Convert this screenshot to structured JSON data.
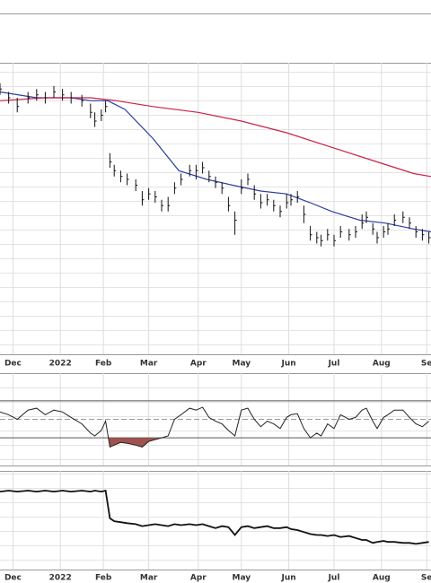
{
  "chart_data": [
    {
      "type": "hlc",
      "xlim": [
        0,
        200
      ],
      "xticks": [
        {
          "value": 6,
          "label": "Dec"
        },
        {
          "value": 28,
          "label": "2022"
        },
        {
          "value": 48,
          "label": "Feb"
        },
        {
          "value": 69,
          "label": "Mar"
        },
        {
          "value": 92,
          "label": "Apr"
        },
        {
          "value": 112,
          "label": "May"
        },
        {
          "value": 134,
          "label": "Jun"
        },
        {
          "value": 155,
          "label": "Jul"
        },
        {
          "value": 177,
          "label": "Aug"
        },
        {
          "value": 198,
          "label": "Se"
        }
      ],
      "ylim": [
        0,
        100
      ],
      "grid": true,
      "color": "#111111",
      "x": [
        0,
        4,
        8,
        13,
        17,
        21,
        25,
        29,
        33,
        38,
        42,
        44,
        47,
        49,
        51,
        53,
        56,
        59,
        63,
        66,
        69,
        72,
        75,
        78,
        81,
        84,
        88,
        91,
        94,
        97,
        100,
        103,
        106,
        109,
        112,
        115,
        118,
        121,
        124,
        127,
        130,
        133,
        135,
        138,
        141,
        144,
        147,
        149,
        152,
        155,
        158,
        162,
        165,
        168,
        170,
        173,
        175,
        178,
        180,
        183,
        187,
        190,
        193,
        196,
        199
      ],
      "high": [
        93,
        90,
        88,
        90,
        91,
        90,
        92,
        91,
        90,
        89,
        86,
        83,
        84,
        87,
        69,
        65,
        63,
        62,
        60,
        56,
        57,
        56,
        53,
        54,
        59,
        62,
        65,
        65,
        66,
        63,
        61,
        59,
        54,
        49,
        60,
        62,
        58,
        55,
        55,
        53,
        51,
        55,
        55,
        56,
        51,
        44,
        42,
        41,
        43,
        41,
        44,
        43,
        44,
        48,
        49,
        45,
        42,
        44,
        45,
        48,
        49,
        47,
        44,
        43,
        42
      ],
      "low": [
        89,
        86,
        83,
        86,
        87,
        86,
        88,
        87,
        86,
        85,
        81,
        78,
        80,
        83,
        64,
        61,
        59,
        58,
        56,
        51,
        53,
        52,
        49,
        49,
        55,
        58,
        61,
        60,
        62,
        59,
        57,
        55,
        49,
        41,
        55,
        58,
        53,
        50,
        51,
        49,
        47,
        50,
        51,
        52,
        45,
        39,
        38,
        37,
        39,
        37,
        40,
        39,
        40,
        43,
        45,
        41,
        38,
        40,
        41,
        44,
        45,
        43,
        40,
        39,
        38
      ],
      "close": [
        91,
        88,
        85,
        88,
        89,
        88,
        90,
        89,
        88,
        87,
        83,
        80,
        82,
        85,
        66,
        63,
        61,
        60,
        58,
        53,
        55,
        54,
        51,
        51,
        57,
        60,
        63,
        63,
        64,
        61,
        59,
        57,
        51,
        46,
        57,
        60,
        55,
        52,
        53,
        51,
        49,
        52,
        53,
        54,
        48,
        41,
        40,
        39,
        41,
        39,
        42,
        41,
        42,
        45,
        47,
        43,
        40,
        42,
        43,
        46,
        47,
        45,
        42,
        41,
        40
      ],
      "series": [
        {
          "color": "#2b3fa0",
          "x": [
            0,
            17,
            33,
            42,
            50,
            58,
            71,
            83,
            96,
            108,
            121,
            133,
            144,
            154,
            167,
            179,
            192,
            200
          ],
          "values": [
            90,
            88,
            88,
            87,
            87,
            84,
            74,
            63,
            60,
            58,
            56,
            55,
            52,
            49,
            46,
            45,
            43,
            42
          ]
        },
        {
          "color": "#c8234a",
          "x": [
            0,
            21,
            42,
            54,
            71,
            92,
            112,
            133,
            154,
            175,
            192,
            200
          ],
          "values": [
            87,
            88,
            88,
            87,
            85,
            83,
            80,
            76,
            71,
            66,
            62,
            61
          ]
        }
      ]
    },
    {
      "type": "oscillator",
      "xlim": [
        0,
        200
      ],
      "ylim": [
        0,
        100
      ],
      "levels": [
        30,
        50,
        70
      ],
      "color": "#222222",
      "fill_color": "#a0524e",
      "x": [
        0,
        4,
        8,
        13,
        17,
        21,
        25,
        29,
        33,
        38,
        42,
        44,
        47,
        49,
        51,
        53,
        56,
        59,
        63,
        66,
        69,
        72,
        75,
        78,
        81,
        84,
        88,
        91,
        94,
        97,
        100,
        103,
        106,
        109,
        112,
        115,
        118,
        121,
        124,
        127,
        130,
        133,
        135,
        138,
        141,
        144,
        147,
        149,
        152,
        155,
        158,
        162,
        165,
        168,
        170,
        173,
        175,
        178,
        180,
        183,
        187,
        190,
        193,
        196,
        199
      ],
      "values": [
        58,
        55,
        50,
        60,
        62,
        55,
        60,
        58,
        52,
        45,
        35,
        32,
        38,
        48,
        20,
        22,
        25,
        24,
        22,
        20,
        26,
        28,
        30,
        32,
        50,
        55,
        62,
        60,
        63,
        52,
        48,
        45,
        38,
        32,
        60,
        62,
        50,
        42,
        48,
        45,
        40,
        52,
        55,
        56,
        40,
        30,
        35,
        32,
        45,
        40,
        55,
        50,
        52,
        60,
        62,
        48,
        40,
        52,
        55,
        60,
        60,
        52,
        45,
        42,
        48
      ]
    },
    {
      "type": "line",
      "xlim": [
        0,
        200
      ],
      "xticks": [
        {
          "value": 6,
          "label": "Dec"
        },
        {
          "value": 28,
          "label": "2022"
        },
        {
          "value": 48,
          "label": "Feb"
        },
        {
          "value": 69,
          "label": "Mar"
        },
        {
          "value": 92,
          "label": "Apr"
        },
        {
          "value": 112,
          "label": "May"
        },
        {
          "value": 134,
          "label": "Jun"
        },
        {
          "value": 155,
          "label": "Jul"
        },
        {
          "value": 177,
          "label": "Aug"
        },
        {
          "value": 198,
          "label": "Se"
        }
      ],
      "ylim": [
        0,
        100
      ],
      "grid": true,
      "color": "#111111",
      "x": [
        0,
        4,
        8,
        13,
        17,
        21,
        25,
        29,
        33,
        38,
        42,
        44,
        47,
        49,
        51,
        53,
        56,
        59,
        63,
        66,
        69,
        72,
        75,
        78,
        81,
        84,
        88,
        91,
        94,
        97,
        100,
        103,
        106,
        109,
        112,
        115,
        118,
        121,
        124,
        127,
        130,
        133,
        135,
        138,
        141,
        144,
        147,
        149,
        152,
        155,
        158,
        162,
        165,
        168,
        170,
        173,
        175,
        178,
        180,
        183,
        187,
        190,
        193,
        196,
        199
      ],
      "values": [
        79,
        80,
        79,
        80,
        79,
        80,
        79,
        80,
        79,
        80,
        79,
        80,
        79,
        80,
        52,
        49,
        48,
        47,
        46,
        44,
        45,
        46,
        45,
        44,
        46,
        45,
        46,
        45,
        46,
        44,
        42,
        44,
        43,
        35,
        43,
        44,
        42,
        43,
        44,
        42,
        42,
        43,
        41,
        40,
        38,
        36,
        35,
        35,
        34,
        35,
        33,
        34,
        32,
        30,
        30,
        27,
        28,
        29,
        28,
        28,
        27,
        27,
        26,
        27,
        28
      ]
    }
  ]
}
